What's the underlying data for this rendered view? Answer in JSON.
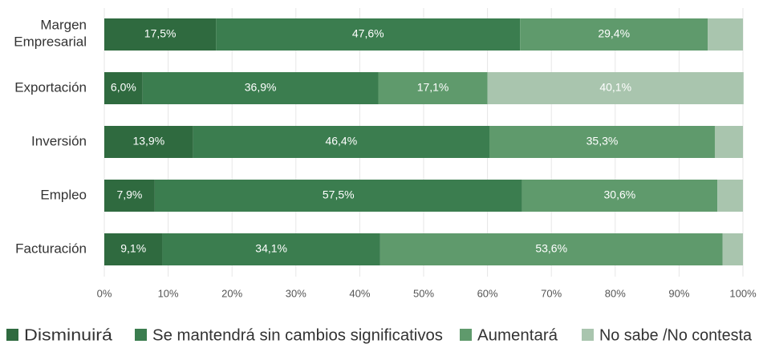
{
  "chart_data": {
    "type": "stacked-barh",
    "categories": [
      "Margen Empresarial",
      "Exportación",
      "Inversión",
      "Empleo",
      "Facturación"
    ],
    "series": [
      {
        "name": "Disminuirá",
        "color": "#2f6a3f",
        "values": [
          17.5,
          6.0,
          13.9,
          7.9,
          9.1
        ],
        "value_labels": [
          "17,5%",
          "6,0%",
          "13,9%",
          "7,9%",
          "9,1%"
        ]
      },
      {
        "name": "Se mantendrá sin cambios significativos",
        "color": "#3b7d4f",
        "values": [
          47.6,
          36.9,
          46.4,
          57.5,
          34.1
        ],
        "value_labels": [
          "47,6%",
          "36,9%",
          "46,4%",
          "57,5%",
          "34,1%"
        ]
      },
      {
        "name": "Aumentará",
        "color": "#5f9a6c",
        "values": [
          29.4,
          17.1,
          35.3,
          30.6,
          53.6
        ],
        "value_labels": [
          "29,4%",
          "17,1%",
          "35,3%",
          "30,6%",
          "53,6%"
        ]
      },
      {
        "name": "No sabe /No contesta",
        "color": "#a9c5ae",
        "values": [
          5.5,
          40.1,
          4.4,
          4.0,
          3.2
        ],
        "value_labels": [
          null,
          "40,1%",
          null,
          null,
          null
        ]
      }
    ],
    "xlim": [
      0,
      100
    ],
    "xticks": [
      {
        "value": 0,
        "label": "0%"
      },
      {
        "value": 10,
        "label": "10%"
      },
      {
        "value": 20,
        "label": "20%"
      },
      {
        "value": 30,
        "label": "30%"
      },
      {
        "value": 40,
        "label": "40%"
      },
      {
        "value": 50,
        "label": "50%"
      },
      {
        "value": 60,
        "label": "60%"
      },
      {
        "value": 70,
        "label": "70%"
      },
      {
        "value": 80,
        "label": "80%"
      },
      {
        "value": 90,
        "label": "90%"
      },
      {
        "value": 100,
        "label": "100%"
      }
    ],
    "grid": true,
    "legend": "bottom"
  }
}
